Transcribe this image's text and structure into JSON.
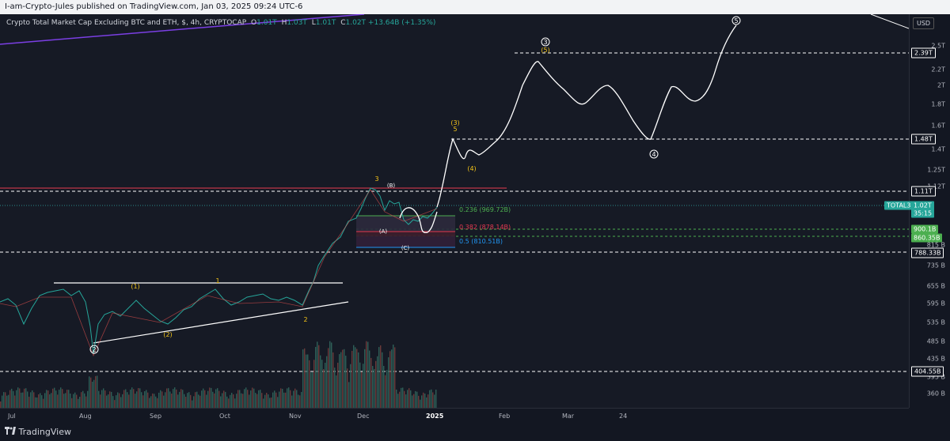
{
  "header": {
    "publisher_line": "I-am-Crypto-Jules published on TradingView.com, Jan 03, 2025 09:24 UTC-6"
  },
  "legend": {
    "symbol_desc": "Crypto Total Market Cap Excluding BTC and ETH, $, 4h, CRYPTOCAP",
    "open_label": "O",
    "open_value": "1.01T",
    "high_label": "H",
    "high_value": "1.03T",
    "low_label": "L",
    "low_value": "1.01T",
    "close_label": "C",
    "close_value": "1.02T",
    "change": "+13.64B (+1.35%)"
  },
  "price_axis": {
    "currency_button": "USD",
    "ticks": [
      "2.5T",
      "2.2T",
      "2T",
      "1.8T",
      "1.6T",
      "1.4T",
      "1.25T",
      "1.12T",
      "815 B",
      "735 B",
      "655 B",
      "595 B",
      "535 B",
      "485 B",
      "435 B",
      "395 B",
      "360 B"
    ],
    "tags": [
      {
        "text": "2.39T",
        "style": "outline"
      },
      {
        "text": "1.48T",
        "style": "outline"
      },
      {
        "text": "1.11T",
        "style": "outline"
      },
      {
        "text": "TOTAL3",
        "style": "teal"
      },
      {
        "text": "1.02T",
        "style": "teal"
      },
      {
        "text": "35:15",
        "style": "teal"
      },
      {
        "text": "900.1B",
        "style": "green"
      },
      {
        "text": "860.35B",
        "style": "green"
      },
      {
        "text": "788.33B",
        "style": "outline"
      },
      {
        "text": "404.55B",
        "style": "outline"
      }
    ]
  },
  "time_axis": {
    "ticks": [
      "Jul",
      "Aug",
      "Sep",
      "Oct",
      "Nov",
      "Dec",
      "2025",
      "Feb",
      "Mar",
      "24"
    ]
  },
  "fib_levels": [
    {
      "text": "0.236 (969.72B)",
      "color": "#4caf50"
    },
    {
      "text": "0.382 (878.14B)",
      "color": "#e53950"
    },
    {
      "text": "0.5 (810.51B)",
      "color": "#2196f3"
    }
  ],
  "wave_labels": {
    "circled_2": "2",
    "circled_3": "3",
    "circled_4": "4",
    "circled_5": "5",
    "paren_1": "(1)",
    "paren_2": "(2)",
    "paren_3": "(3)",
    "paren_4": "(4)",
    "paren_5": "(5)",
    "paren_A": "(A)",
    "paren_B": "(B)",
    "paren_C": "(C)",
    "minor_1": "1",
    "minor_2": "2",
    "minor_3": "3",
    "minor_5": "5"
  },
  "footer": {
    "brand": "TradingView"
  },
  "colors": {
    "background": "#161a25",
    "up": "#26a69a",
    "down": "#ef5350",
    "label_yellow": "#f5c518",
    "projection": "#ffffff"
  }
}
